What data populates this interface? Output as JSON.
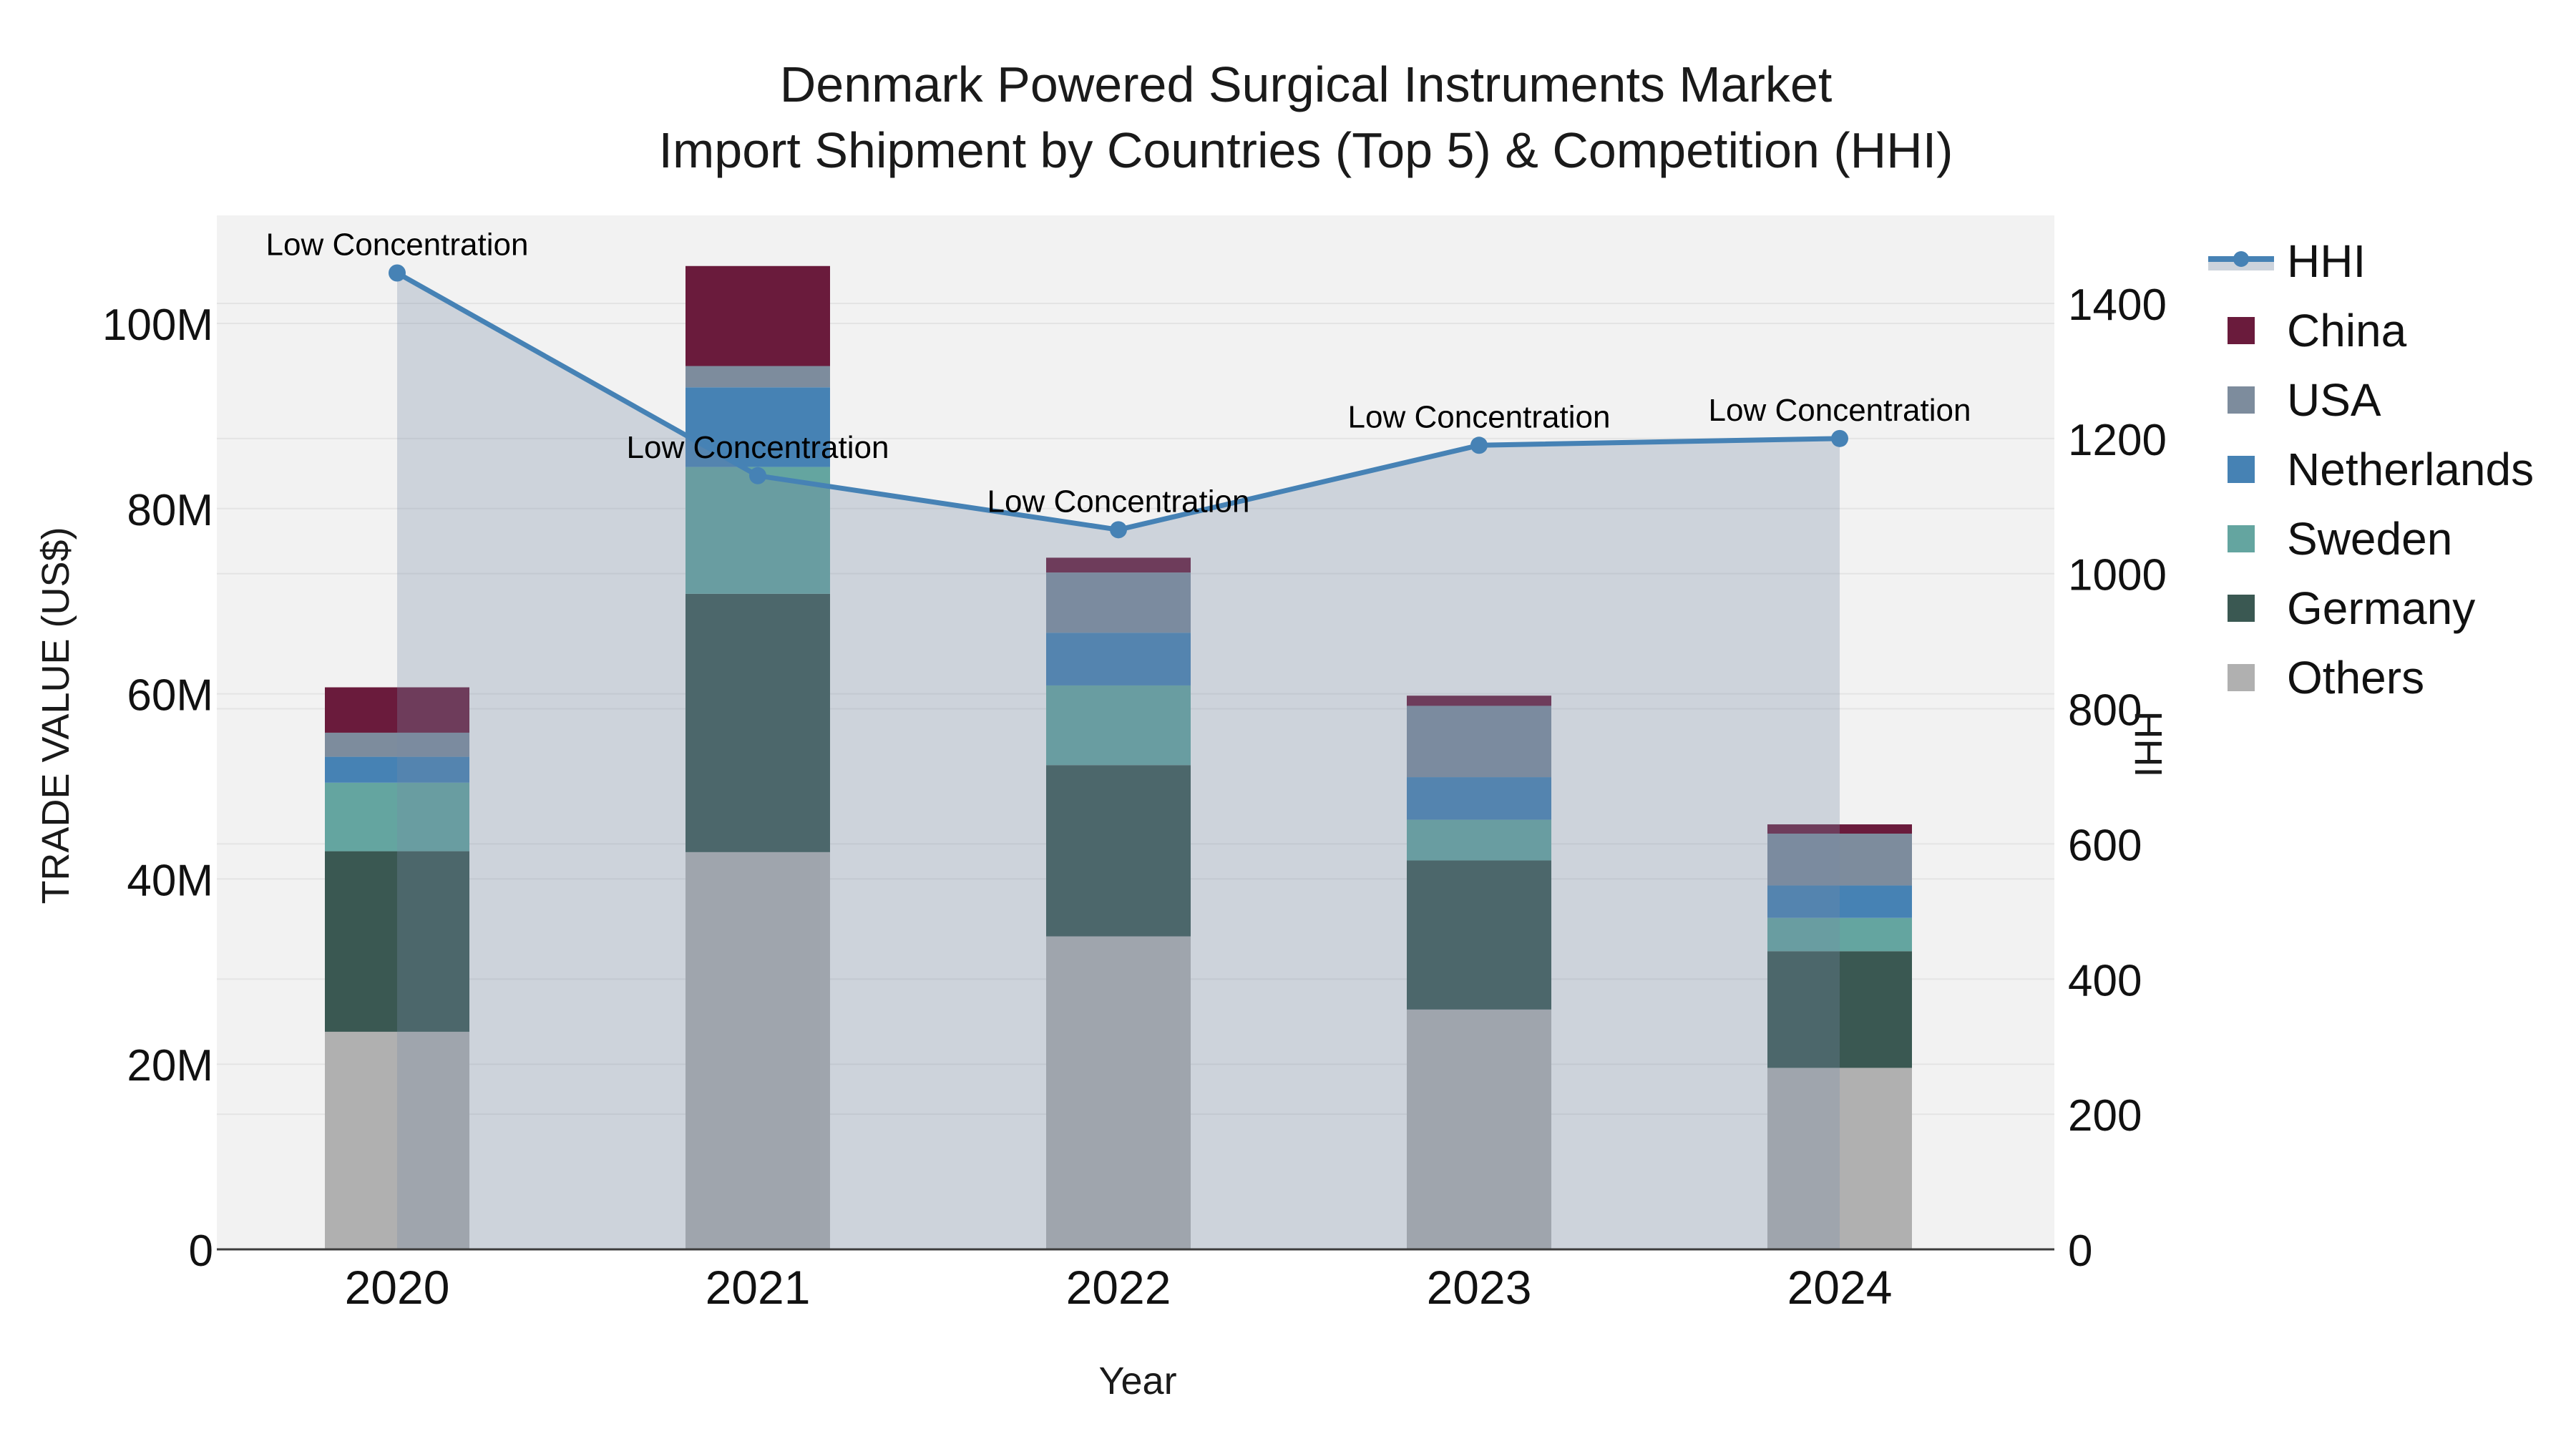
{
  "title": {
    "line1": "Denmark Powered Surgical Instruments Market",
    "line2": "Import Shipment by Countries (Top 5) & Competition (HHI)"
  },
  "axes": {
    "x": {
      "title": "Year",
      "categories": [
        "2020",
        "2021",
        "2022",
        "2023",
        "2024"
      ]
    },
    "left": {
      "title": "TRADE VALUE (US$)",
      "tick_labels": [
        "0",
        "20M",
        "40M",
        "60M",
        "80M",
        "100M"
      ],
      "tick_values": [
        0,
        20,
        40,
        60,
        80,
        100
      ],
      "range": [
        0,
        112
      ],
      "unit": "million US$"
    },
    "right": {
      "title": "HHI",
      "tick_labels": [
        "0",
        "200",
        "400",
        "600",
        "800",
        "1000",
        "1200",
        "1400"
      ],
      "tick_values": [
        0,
        200,
        400,
        600,
        800,
        1000,
        1200,
        1400
      ],
      "range": [
        0,
        1535
      ]
    }
  },
  "legend": {
    "items": [
      {
        "label": "HHI",
        "type": "line",
        "color": "#4682B5"
      },
      {
        "label": "China",
        "type": "swatch",
        "color": "#6A1B3C"
      },
      {
        "label": "USA",
        "type": "swatch",
        "color": "#7D8C9D"
      },
      {
        "label": "Netherlands",
        "type": "swatch",
        "color": "#4682B4"
      },
      {
        "label": "Sweden",
        "type": "swatch",
        "color": "#64A5A0"
      },
      {
        "label": "Germany",
        "type": "swatch",
        "color": "#3A5852"
      },
      {
        "label": "Others",
        "type": "swatch",
        "color": "#B0B0B0"
      }
    ]
  },
  "chart_data": {
    "type": "bar",
    "subtype": "stacked-bars-with-secondary-axis-line",
    "title": "Denmark Powered Surgical Instruments Market — Import Shipment by Countries (Top 5) & Competition (HHI)",
    "xlabel": "Year",
    "ylabel_left": "TRADE VALUE (US$)",
    "ylabel_right": "HHI",
    "grid": true,
    "legend_position": "right",
    "categories": [
      "2020",
      "2021",
      "2022",
      "2023",
      "2024"
    ],
    "bar_unit": "million US$",
    "series": [
      {
        "name": "Others",
        "color": "#B0B0B0",
        "values": [
          23.5,
          42.9,
          33.8,
          25.9,
          19.6
        ]
      },
      {
        "name": "Germany",
        "color": "#3A5852",
        "values": [
          19.5,
          27.9,
          18.5,
          16.1,
          12.6
        ]
      },
      {
        "name": "Sweden",
        "color": "#64A5A0",
        "values": [
          7.4,
          13.7,
          8.6,
          4.4,
          3.6
        ]
      },
      {
        "name": "Netherlands",
        "color": "#4682B4",
        "values": [
          2.8,
          8.6,
          5.7,
          4.6,
          3.5
        ]
      },
      {
        "name": "USA",
        "color": "#7D8C9D",
        "values": [
          2.6,
          2.3,
          6.5,
          7.7,
          5.6
        ]
      },
      {
        "name": "China",
        "color": "#6A1B3C",
        "values": [
          4.9,
          10.8,
          1.6,
          1.1,
          1.0
        ]
      }
    ],
    "stack_totals": [
      60.7,
      106.2,
      74.7,
      59.8,
      45.9
    ],
    "line_series": {
      "name": "HHI",
      "axis": "right",
      "color": "#4682B5",
      "area_fill": "rgba(120,140,165,0.30)",
      "values": [
        1445,
        1145,
        1065,
        1190,
        1200
      ]
    },
    "annotations": [
      {
        "category": "2020",
        "text": "Low Concentration"
      },
      {
        "category": "2021",
        "text": "Low Concentration"
      },
      {
        "category": "2022",
        "text": "Low Concentration"
      },
      {
        "category": "2023",
        "text": "Low Concentration"
      },
      {
        "category": "2024",
        "text": "Low Concentration"
      }
    ]
  },
  "colors": {
    "page_bg": "#FFFFFF",
    "plot_bg": "#F2F2F2",
    "grid": "#E4E4E4",
    "axis_line": "#3C3C3C",
    "area_fill": "rgba(120,140,165,0.30)",
    "annotation": "#000000"
  }
}
